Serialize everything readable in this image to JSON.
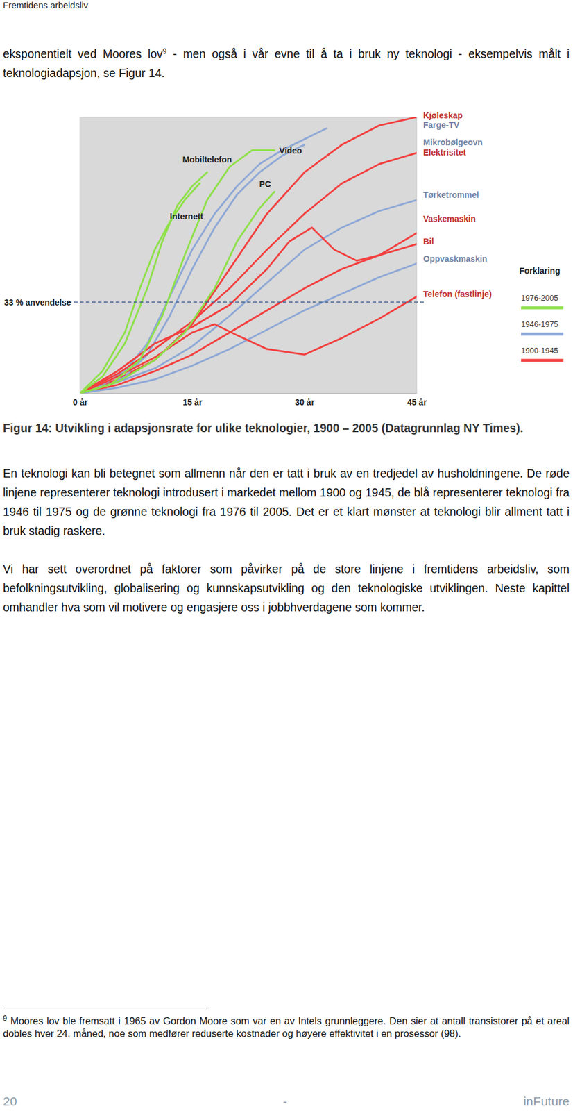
{
  "header": "Fremtidens arbeidsliv",
  "intro": {
    "text": "eksponentielt ved Moores lov",
    "footnote_ref": "9",
    "text_after": " - men også i vår evne til å ta i bruk ny teknologi - eksempelvis målt i teknologiadapsjon, se Figur 14."
  },
  "chart_data": {
    "type": "line",
    "xlim": [
      0,
      45
    ],
    "xticks": [
      {
        "value": 0,
        "label": "0 år"
      },
      {
        "value": 15,
        "label": "15 år"
      },
      {
        "value": 30,
        "label": "30 år"
      },
      {
        "value": 45,
        "label": "45 år"
      }
    ],
    "ylim": [
      0,
      100
    ],
    "tick_labels": "x",
    "reference_line": {
      "value": 33,
      "label": "33 % anvendelse",
      "line_style": "dashed"
    },
    "legend_title": "Forklaring",
    "eras": [
      {
        "name": "1976-2005",
        "color": "#8fe04a"
      },
      {
        "name": "1946-1975",
        "color": "#8ea8d6"
      },
      {
        "name": "1900-1945",
        "color": "#f2403f"
      }
    ],
    "series": [
      {
        "name": "Kjøleskap",
        "color": "#f2403f",
        "x": [
          0,
          5,
          10,
          15,
          20,
          25,
          30,
          35,
          40,
          45
        ],
        "values": [
          0,
          5,
          12,
          25,
          45,
          65,
          80,
          90,
          97,
          100
        ]
      },
      {
        "name": "Farge-TV",
        "color": "#8ea8d6",
        "x": [
          0,
          3,
          6,
          9,
          12,
          15,
          18,
          21,
          24,
          27,
          30,
          33
        ],
        "values": [
          0,
          3,
          8,
          18,
          35,
          52,
          65,
          75,
          83,
          88,
          92,
          96
        ]
      },
      {
        "name": "Mikrobølgeovn",
        "color": "#8ea8d6",
        "x": [
          0,
          3,
          6,
          9,
          12,
          15,
          18,
          21,
          24,
          27,
          30
        ],
        "values": [
          0,
          2,
          6,
          14,
          28,
          45,
          60,
          72,
          80,
          86,
          90
        ]
      },
      {
        "name": "Elektrisitet",
        "color": "#f2403f",
        "x": [
          0,
          5,
          10,
          15,
          20,
          25,
          30,
          35,
          40,
          45
        ],
        "values": [
          0,
          7,
          16,
          26,
          38,
          52,
          65,
          76,
          83,
          87
        ]
      },
      {
        "name": "Tørketrommel",
        "color": "#8ea8d6",
        "x": [
          0,
          5,
          10,
          15,
          20,
          25,
          30,
          35,
          40,
          45
        ],
        "values": [
          0,
          4,
          9,
          17,
          28,
          40,
          52,
          60,
          66,
          70
        ]
      },
      {
        "name": "Vaskemaskin",
        "color": "#f2403f",
        "x": [
          0,
          5,
          10,
          15,
          20,
          25,
          28,
          31,
          34,
          37,
          40,
          45
        ],
        "values": [
          0,
          8,
          18,
          24,
          32,
          45,
          55,
          60,
          52,
          48,
          50,
          58
        ]
      },
      {
        "name": "Bil",
        "color": "#f2403f",
        "x": [
          0,
          5,
          10,
          15,
          20,
          25,
          30,
          35,
          40,
          45
        ],
        "values": [
          0,
          3,
          8,
          14,
          22,
          30,
          38,
          45,
          50,
          54
        ]
      },
      {
        "name": "Oppvaskmaskin",
        "color": "#8ea8d6",
        "x": [
          0,
          5,
          10,
          15,
          20,
          25,
          30,
          35,
          40,
          45
        ],
        "values": [
          0,
          2,
          5,
          10,
          16,
          23,
          30,
          36,
          42,
          47
        ]
      },
      {
        "name": "Telefon (fastlinje)",
        "color": "#f2403f",
        "x": [
          0,
          5,
          10,
          15,
          18,
          21,
          25,
          30,
          35,
          40,
          45
        ],
        "values": [
          0,
          6,
          13,
          22,
          25,
          21,
          16,
          14,
          20,
          27,
          35
        ]
      },
      {
        "name": "Mobiltelefon",
        "color": "#8fe04a",
        "x": [
          0,
          3,
          6,
          9,
          11,
          13,
          15,
          17
        ],
        "values": [
          0,
          6,
          18,
          38,
          55,
          68,
          75,
          80
        ]
      },
      {
        "name": "Video",
        "color": "#8fe04a",
        "x": [
          0,
          4,
          8,
          11,
          14,
          17,
          20,
          23,
          26
        ],
        "values": [
          0,
          3,
          12,
          28,
          50,
          70,
          82,
          88,
          88
        ]
      },
      {
        "name": "PC",
        "color": "#8fe04a",
        "x": [
          0,
          5,
          10,
          14,
          18,
          21,
          24,
          26
        ],
        "values": [
          0,
          4,
          12,
          22,
          38,
          55,
          67,
          73
        ]
      },
      {
        "name": "Internett",
        "color": "#8fe04a",
        "x": [
          0,
          3,
          6,
          8,
          10,
          12,
          14,
          16
        ],
        "values": [
          0,
          8,
          22,
          38,
          52,
          62,
          70,
          76
        ]
      }
    ]
  },
  "caption": "Figur 14: Utvikling i adapsjonsrate for ulike teknologier, 1900 – 2005 (Datagrunnlag NY Times).",
  "paragraphs": [
    "En teknologi kan bli betegnet som allmenn når den er tatt i bruk av en tredjedel av husholdningene. De røde linjene representerer teknologi introdusert i markedet mellom 1900 og 1945, de blå representerer teknologi fra 1946 til 1975 og de grønne teknologi fra 1976 til 2005. Det er et klart mønster at teknologi blir allment tatt i bruk stadig raskere.",
    "Vi har sett overordnet på faktorer som påvirker på de store linjene i fremtidens arbeidsliv, som befolkningsutvikling, globalisering og kunnskapsutvikling og den teknologiske utviklingen. Neste kapittel omhandler hva som vil motivere og engasjere oss i jobbhverdagene som kommer."
  ],
  "footnote": {
    "ref": "9",
    "text": "Moores lov ble fremsatt i 1965 av Gordon Moore som var en av Intels grunnleggere. Den sier at antall transistorer på et areal dobles hver 24. måned, noe som medfører reduserte kostnader og høyere effektivitet i en prosessor (98)."
  },
  "footer": {
    "page": "20",
    "separator": "-",
    "publisher": "inFuture"
  }
}
